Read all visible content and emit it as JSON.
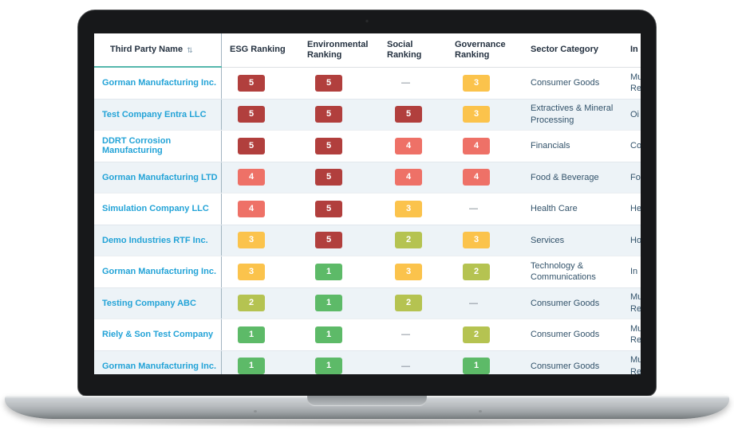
{
  "colors": {
    "link": "#23a3d7",
    "teal_accent": "#55b7ad",
    "header_text": "#243140",
    "body_text": "#33536b"
  },
  "rank_colors": {
    "1": "#5dba68",
    "2": "#b5c351",
    "3": "#fbc34c",
    "4": "#ee7167",
    "5": "#b13f3d"
  },
  "table": {
    "no_value": "—",
    "sort_icon_glyph": "⇅",
    "columns": {
      "name": {
        "label": "Third Party Name"
      },
      "esg": {
        "label": "ESG Ranking"
      },
      "env": {
        "label": "Environmental Ranking"
      },
      "social": {
        "label": "Social Ranking"
      },
      "gov": {
        "label": "Governance Ranking"
      },
      "sector": {
        "label": "Sector Category"
      },
      "industry": {
        "label": "In"
      }
    },
    "rows": [
      {
        "name": "Gorman Manufacturing Inc.",
        "esg": 5,
        "env": 5,
        "social": null,
        "gov": 3,
        "sector": "Consumer Goods",
        "industry_lines": [
          "Mu",
          "Re"
        ]
      },
      {
        "name": "Test Company Entra LLC",
        "esg": 5,
        "env": 5,
        "social": 5,
        "gov": 3,
        "sector": "Extractives & Mineral Processing",
        "industry_lines": [
          "Oi"
        ]
      },
      {
        "name": "DDRT Corrosion Manufacturing",
        "esg": 5,
        "env": 5,
        "social": 4,
        "gov": 4,
        "sector": "Financials",
        "industry_lines": [
          "Co"
        ]
      },
      {
        "name": "Gorman Manufacturing LTD",
        "esg": 4,
        "env": 5,
        "social": 4,
        "gov": 4,
        "sector": "Food & Beverage",
        "industry_lines": [
          "Fo"
        ]
      },
      {
        "name": "Simulation Company LLC",
        "esg": 4,
        "env": 5,
        "social": 3,
        "gov": null,
        "sector": "Health Care",
        "industry_lines": [
          "He"
        ]
      },
      {
        "name": "Demo Industries RTF Inc.",
        "esg": 3,
        "env": 5,
        "social": 2,
        "gov": 3,
        "sector": "Services",
        "industry_lines": [
          "Ho"
        ]
      },
      {
        "name": "Gorman Manufacturing Inc.",
        "esg": 3,
        "env": 1,
        "social": 3,
        "gov": 2,
        "sector": "Technology & Communications",
        "industry_lines": [
          "In"
        ]
      },
      {
        "name": "Testing Company ABC",
        "esg": 2,
        "env": 1,
        "social": 2,
        "gov": null,
        "sector": "Consumer Goods",
        "industry_lines": [
          "Mu",
          "Re"
        ]
      },
      {
        "name": "Riely & Son Test Company",
        "esg": 1,
        "env": 1,
        "social": null,
        "gov": 2,
        "sector": "Consumer Goods",
        "industry_lines": [
          "Mu",
          "Re"
        ]
      },
      {
        "name": "Gorman Manufacturing Inc.",
        "esg": 1,
        "env": 1,
        "social": null,
        "gov": 1,
        "sector": "Consumer Goods",
        "industry_lines": [
          "Mu",
          "Re"
        ]
      }
    ]
  }
}
